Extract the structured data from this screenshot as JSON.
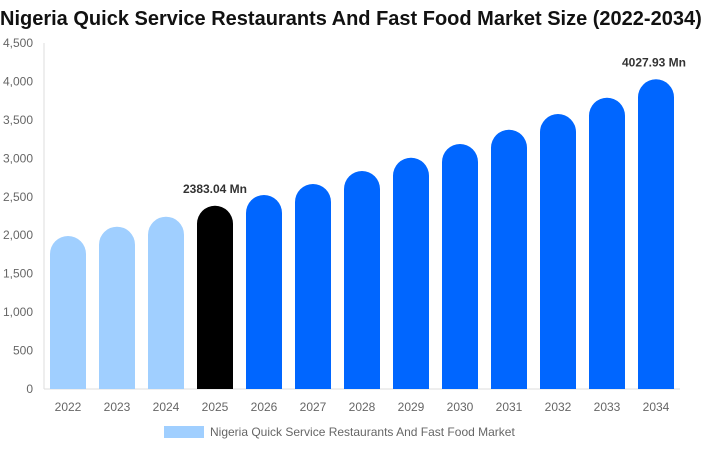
{
  "chart_data": {
    "type": "bar",
    "title": "Nigeria Quick Service Restaurants And Fast Food Market Size (2022-2034)",
    "categories": [
      "2022",
      "2023",
      "2024",
      "2025",
      "2026",
      "2027",
      "2028",
      "2029",
      "2030",
      "2031",
      "2032",
      "2033",
      "2034"
    ],
    "series": [
      {
        "name": "Nigeria Quick Service Restaurants And Fast Food Market",
        "values": [
          1990,
          2111,
          2241,
          2383.04,
          2523,
          2666,
          2835,
          3008,
          3186,
          3372,
          3576,
          3788,
          4027.93
        ]
      }
    ],
    "ylim": [
      0,
      4500
    ],
    "yticks": [
      "0",
      "500",
      "1,000",
      "1,500",
      "2,000",
      "2,500",
      "3,000",
      "3,500",
      "4,000",
      "4,500"
    ],
    "annotations": [
      {
        "category": "2025",
        "text": "2383.04 Mn"
      },
      {
        "category": "2034",
        "text": "4027.93 Mn"
      }
    ],
    "colors": {
      "historic": "#a0cfff",
      "current": "#000000",
      "forecast": "#0066ff"
    },
    "legend": "bottom",
    "grid": false
  }
}
